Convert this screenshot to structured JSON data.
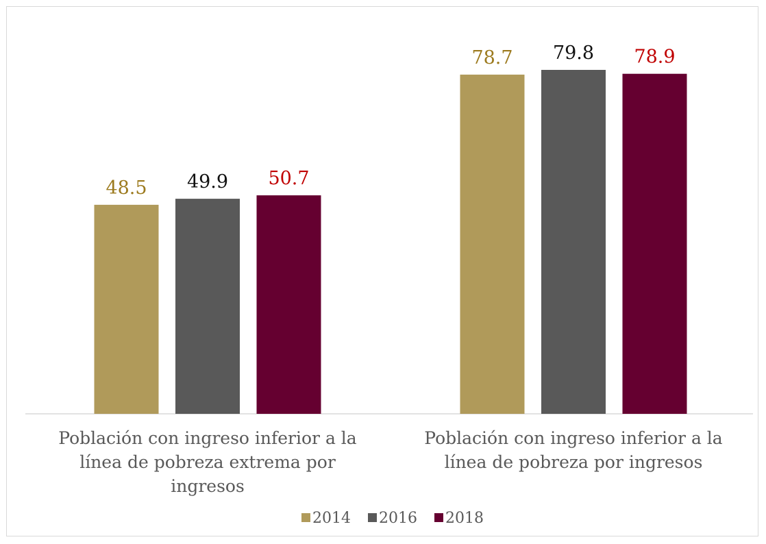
{
  "chart_data": {
    "type": "bar",
    "categories": [
      [
        "Población con ingreso inferior a la",
        "línea de pobreza extrema por",
        "ingresos"
      ],
      [
        "Población con ingreso inferior a la",
        "línea de pobreza por ingresos"
      ]
    ],
    "series": [
      {
        "name": "2014",
        "values": [
          48.5,
          78.7
        ],
        "color": "#B09A5A",
        "label_color": "#9C7A1E"
      },
      {
        "name": "2016",
        "values": [
          49.9,
          79.8
        ],
        "color": "#595959",
        "label_color": "#111111"
      },
      {
        "name": "2018",
        "values": [
          50.7,
          78.9
        ],
        "color": "#650030",
        "label_color": "#C00000"
      }
    ],
    "ylim": [
      0,
      79.8
    ],
    "grid": false,
    "legend_position": "bottom"
  }
}
